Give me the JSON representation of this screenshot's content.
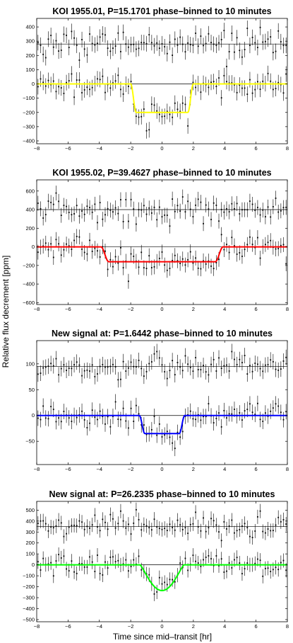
{
  "figure": {
    "ylabel": "Relative flux decrement [ppm]",
    "xlabel": "Time since mid–transit [hr]"
  },
  "chart_data": [
    {
      "type": "scatter",
      "title": "KOI 1955.01, P=15.1701 phase–binned to 10 minutes",
      "xlim": [
        -8,
        8
      ],
      "ylim": [
        -420,
        460
      ],
      "x_ticks": [
        -8,
        -6,
        -4,
        -2,
        0,
        2,
        4,
        6,
        8
      ],
      "y_ticks": [
        -400,
        -300,
        -200,
        -100,
        0,
        100,
        200,
        300,
        400
      ],
      "baselines": [
        0,
        280
      ],
      "offset_data_level": 280,
      "transit_model": {
        "color": "#ffff00",
        "depth": 200,
        "half_duration": 2.0,
        "ingress": 0.35,
        "shape": "box"
      },
      "noise_sigma": 45,
      "error_bar": 55
    },
    {
      "type": "scatter",
      "title": "KOI 1955.02, P=39.4627 phase–binned to 10 minutes",
      "xlim": [
        -8,
        8
      ],
      "ylim": [
        -620,
        720
      ],
      "x_ticks": [
        -8,
        -6,
        -4,
        -2,
        0,
        2,
        4,
        6,
        8
      ],
      "y_ticks": [
        -600,
        -400,
        -200,
        0,
        200,
        400,
        600
      ],
      "baselines": [
        0,
        400
      ],
      "offset_data_level": 400,
      "transit_model": {
        "color": "#ff0000",
        "depth": 160,
        "half_duration": 3.9,
        "ingress": 0.5,
        "shape": "box"
      },
      "noise_sigma": 70,
      "error_bar": 80
    },
    {
      "type": "scatter",
      "title": "New signal at: P=1.6442 phase–binned to 10 minutes",
      "xlim": [
        -8,
        8
      ],
      "ylim": [
        -95,
        145
      ],
      "x_ticks": [
        -8,
        -6,
        -4,
        -2,
        0,
        2,
        4,
        6,
        8
      ],
      "y_ticks": [
        -50,
        0,
        50,
        100
      ],
      "baselines": [
        0,
        95
      ],
      "offset_data_level": 95,
      "transit_model": {
        "color": "#0000ff",
        "depth": 35,
        "half_duration": 1.45,
        "ingress": 0.35,
        "shape": "box"
      },
      "noise_sigma": 13,
      "error_bar": 15
    },
    {
      "type": "scatter",
      "title": "New signal at: P=26.2335 phase–binned to 10 minutes",
      "xlim": [
        -8,
        8
      ],
      "ylim": [
        -520,
        580
      ],
      "x_ticks": [
        -8,
        -6,
        -4,
        -2,
        0,
        2,
        4,
        6,
        8
      ],
      "y_ticks": [
        -500,
        -400,
        -300,
        -200,
        -100,
        0,
        100,
        200,
        300,
        400,
        500
      ],
      "baselines": [
        0,
        350
      ],
      "offset_data_level": 350,
      "transit_model": {
        "color": "#00ff00",
        "depth": 235,
        "half_duration": 1.4,
        "shape": "vee"
      },
      "noise_sigma": 55,
      "error_bar": 65
    }
  ]
}
